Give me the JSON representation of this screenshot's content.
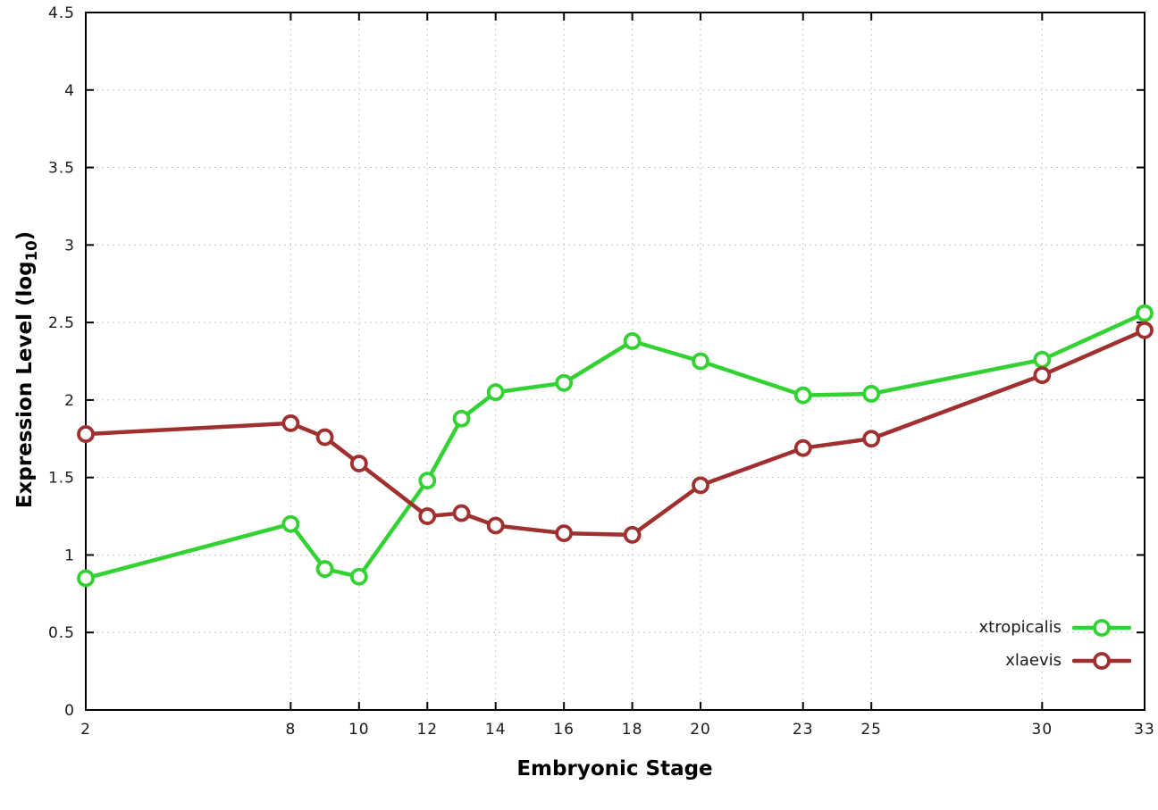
{
  "figure": {
    "background": "#ffffff"
  },
  "chart_data": {
    "type": "line",
    "title": "",
    "xlabel": "Embryonic Stage",
    "ylabel": "Expression Level (log10)",
    "ylabel_parts": {
      "main": "Expression Level (log",
      "sub": "10",
      "close": ")"
    },
    "xlim": [
      2,
      33
    ],
    "ylim": [
      0,
      4.5
    ],
    "grid": true,
    "legend_position": "inside bottom-right",
    "x": [
      2,
      8,
      9,
      10,
      12,
      13,
      14,
      16,
      18,
      20,
      23,
      25,
      30,
      33
    ],
    "xticks": [
      2,
      8,
      10,
      12,
      14,
      16,
      18,
      20,
      23,
      25,
      30,
      33
    ],
    "xtick_labels": [
      "2",
      "8",
      "10",
      "12",
      "14",
      "16",
      "18",
      "20",
      "23",
      "25",
      "30",
      "33"
    ],
    "yticks": [
      0,
      0.5,
      1,
      1.5,
      2,
      2.5,
      3,
      3.5,
      4,
      4.5
    ],
    "ytick_labels": [
      "0",
      "0.5",
      "1",
      "1.5",
      "2",
      "2.5",
      "3",
      "3.5",
      "4",
      "4.5"
    ],
    "series": [
      {
        "name": "xtropicalis",
        "color": "#32d232",
        "marker": "open-circle",
        "values": [
          0.85,
          1.2,
          0.91,
          0.86,
          1.48,
          1.88,
          2.05,
          2.11,
          2.38,
          2.25,
          2.03,
          2.04,
          2.26,
          2.56
        ]
      },
      {
        "name": "xlaevis",
        "color": "#a03030",
        "marker": "open-circle",
        "values": [
          1.78,
          1.85,
          1.76,
          1.59,
          1.25,
          1.27,
          1.19,
          1.14,
          1.13,
          1.45,
          1.69,
          1.75,
          2.16,
          2.45
        ]
      }
    ]
  }
}
